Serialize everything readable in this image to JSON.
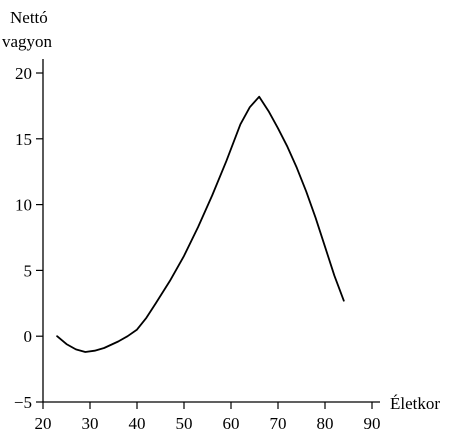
{
  "chart_data": {
    "type": "line",
    "title": "",
    "ylabel_lines": [
      "Nettó",
      "vagyon"
    ],
    "xlabel": "Életkor",
    "xlim": [
      20,
      90
    ],
    "ylim": [
      -5,
      20
    ],
    "x_ticks": [
      20,
      30,
      40,
      50,
      60,
      70,
      80,
      90
    ],
    "y_ticks": [
      -5,
      0,
      5,
      10,
      15,
      20
    ],
    "grid": false,
    "legend": "none",
    "series": [
      {
        "color": "#000000",
        "x": [
          23,
          25,
          27,
          29,
          31,
          33,
          36,
          38,
          40,
          42,
          44,
          47,
          50,
          53,
          56,
          59,
          62,
          64,
          66,
          68,
          70,
          72,
          74,
          76,
          78,
          80,
          82,
          84
        ],
        "y": [
          0,
          -0.6,
          -1.0,
          -1.2,
          -1.1,
          -0.9,
          -0.4,
          0.0,
          0.5,
          1.4,
          2.5,
          4.2,
          6.1,
          8.3,
          10.7,
          13.3,
          16.1,
          17.4,
          18.2,
          17.1,
          15.8,
          14.4,
          12.8,
          11.0,
          9.0,
          6.8,
          4.6,
          2.7
        ]
      }
    ]
  }
}
